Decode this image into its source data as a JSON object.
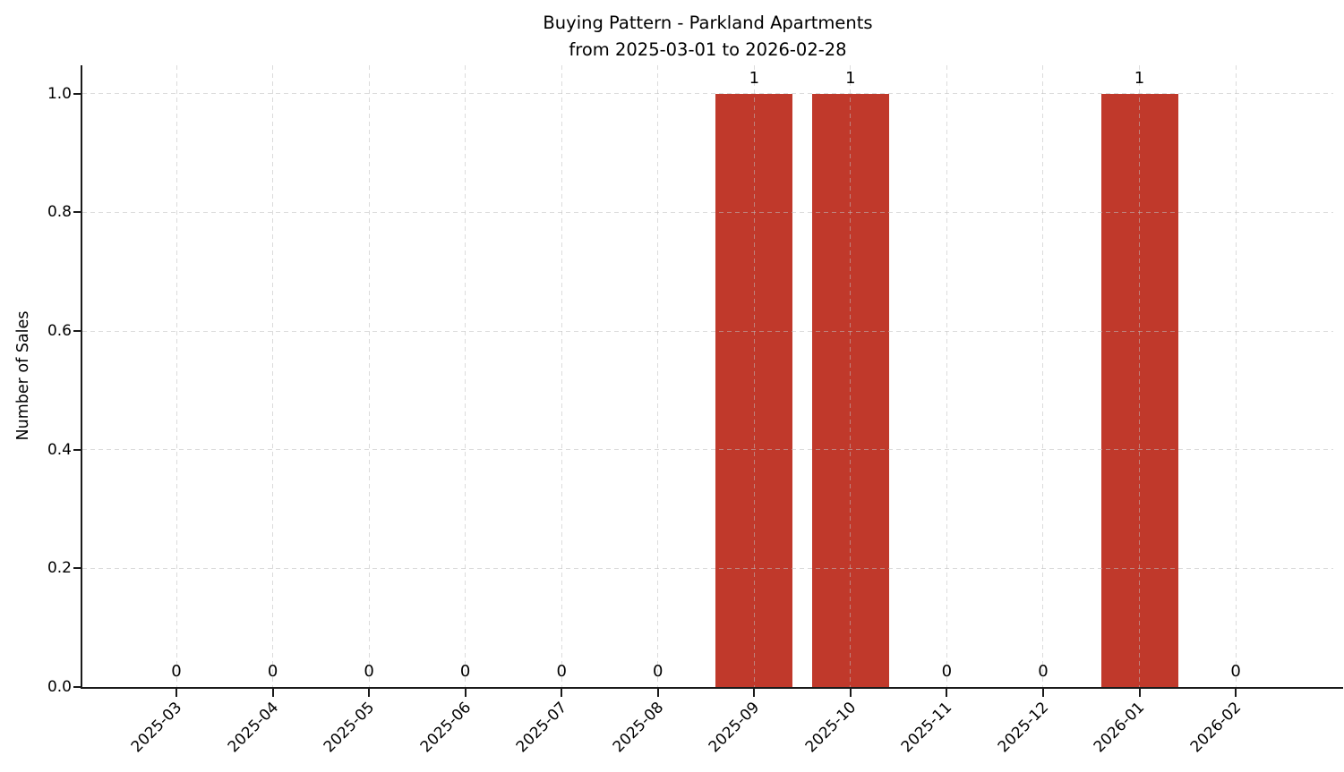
{
  "chart_data": {
    "type": "bar",
    "title": "Buying Pattern - Parkland Apartments",
    "subtitle": "from 2025-03-01 to 2026-02-28",
    "ylabel": "Number of Sales",
    "xlabel": "",
    "categories": [
      "2025-03",
      "2025-04",
      "2025-05",
      "2025-06",
      "2025-07",
      "2025-08",
      "2025-09",
      "2025-10",
      "2025-11",
      "2025-12",
      "2026-01",
      "2026-02"
    ],
    "values": [
      0,
      0,
      0,
      0,
      0,
      0,
      1,
      1,
      0,
      0,
      1,
      0
    ],
    "yticks": [
      0.0,
      0.2,
      0.4,
      0.6,
      0.8,
      1.0
    ],
    "ytick_labels": [
      "0.0",
      "0.2",
      "0.4",
      "0.6",
      "0.8",
      "1.0"
    ],
    "ylim": [
      0,
      1.048
    ],
    "grid": true,
    "grid_style": "dashed",
    "legend": false,
    "value_labels_shown": true,
    "colors": {
      "bar": "#c0392b",
      "axis": "#1a1a1a",
      "text": "#000000",
      "grid": "#bebebe"
    }
  }
}
